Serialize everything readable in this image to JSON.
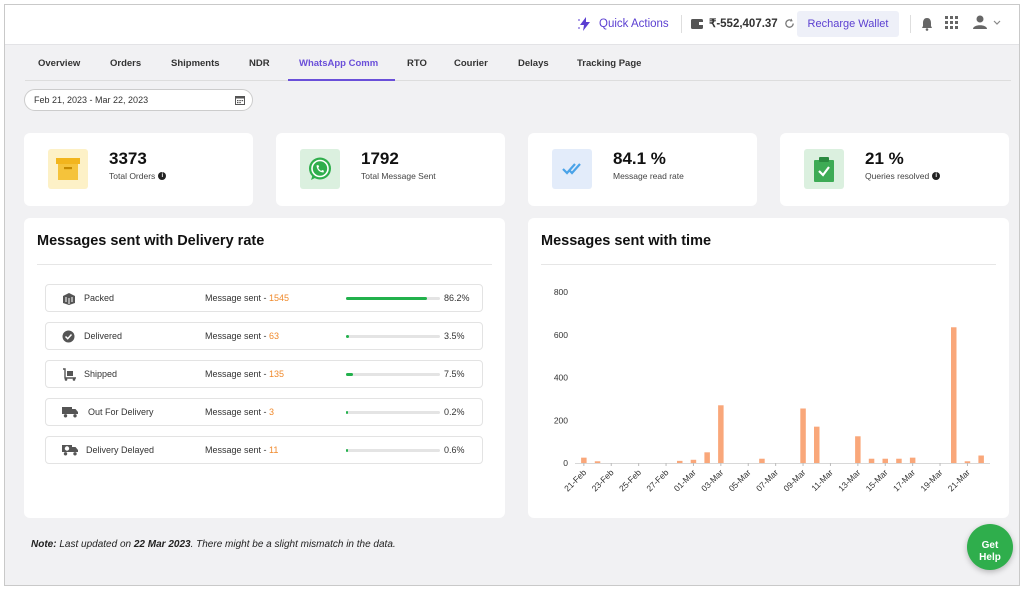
{
  "topbar": {
    "quick_actions": "Quick Actions",
    "wallet_balance": "₹-552,407.37",
    "recharge_label": "Recharge Wallet"
  },
  "tabs": [
    "Overview",
    "Orders",
    "Shipments",
    "NDR",
    "WhatsApp Comm",
    "RTO",
    "Courier",
    "Delays",
    "Tracking Page"
  ],
  "active_tab": "WhatsApp Comm",
  "date_range": "Feb 21, 2023 - Mar 22, 2023",
  "stats": [
    {
      "value": "3373",
      "label": "Total Orders",
      "info": true,
      "color": "#f5c33b"
    },
    {
      "value": "1792",
      "label": "Total Message Sent",
      "info": false,
      "color": "#2fae4c"
    },
    {
      "value": "84.1 %",
      "label": "Message read rate",
      "info": false,
      "color": "#4aa3e8"
    },
    {
      "value": "21 %",
      "label": "Queries resolved",
      "info": true,
      "color": "#3dab55"
    }
  ],
  "delivery_panel": {
    "title": "Messages sent with Delivery rate",
    "message_prefix": "Message sent - ",
    "rows": [
      {
        "name": "Packed",
        "count": "1545",
        "percent": "86.2%",
        "fraction": 0.862,
        "icon": "package-icon"
      },
      {
        "name": "Delivered",
        "count": "63",
        "percent": "3.5%",
        "fraction": 0.035,
        "icon": "check-circle-icon"
      },
      {
        "name": "Shipped",
        "count": "135",
        "percent": "7.5%",
        "fraction": 0.075,
        "icon": "trolley-icon"
      },
      {
        "name": "Out For Delivery",
        "count": "3",
        "percent": "0.2%",
        "fraction": 0.002,
        "icon": "truck-icon"
      },
      {
        "name": "Delivery Delayed",
        "count": "11",
        "percent": "0.6%",
        "fraction": 0.006,
        "icon": "truck-clock-icon"
      }
    ]
  },
  "time_panel": {
    "title": "Messages sent with time"
  },
  "chart_data": {
    "type": "bar",
    "title": "Messages sent with time",
    "xlabel": "",
    "ylabel": "",
    "ylim": [
      0,
      800
    ],
    "yticks": [
      0,
      200,
      400,
      600,
      800
    ],
    "grid": false,
    "color": "#f9a77a",
    "categories": [
      "21-Feb",
      "22-Feb",
      "23-Feb",
      "24-Feb",
      "25-Feb",
      "26-Feb",
      "27-Feb",
      "28-Feb",
      "01-Mar",
      "02-Mar",
      "03-Mar",
      "04-Mar",
      "05-Mar",
      "06-Mar",
      "07-Mar",
      "08-Mar",
      "09-Mar",
      "10-Mar",
      "11-Mar",
      "12-Mar",
      "13-Mar",
      "14-Mar",
      "15-Mar",
      "16-Mar",
      "17-Mar",
      "18-Mar",
      "19-Mar",
      "20-Mar",
      "21-Mar",
      "22-Mar"
    ],
    "tick_labels": [
      "21-Feb",
      "23-Feb",
      "25-Feb",
      "27-Feb",
      "01-Mar",
      "03-Mar",
      "05-Mar",
      "07-Mar",
      "09-Mar",
      "11-Mar",
      "13-Mar",
      "15-Mar",
      "17-Mar",
      "19-Mar",
      "21-Mar"
    ],
    "values": [
      25,
      8,
      0,
      0,
      0,
      0,
      0,
      10,
      15,
      50,
      270,
      0,
      0,
      20,
      0,
      0,
      255,
      170,
      0,
      0,
      125,
      20,
      20,
      20,
      25,
      0,
      0,
      635,
      8,
      35
    ]
  },
  "note": {
    "prefix": "Note:",
    "text1": " Last updated on ",
    "date": "22 Mar 2023",
    "text2": ". There might be a slight mismatch in the data."
  },
  "help_button": {
    "line1": "Get",
    "line2": "Help"
  }
}
